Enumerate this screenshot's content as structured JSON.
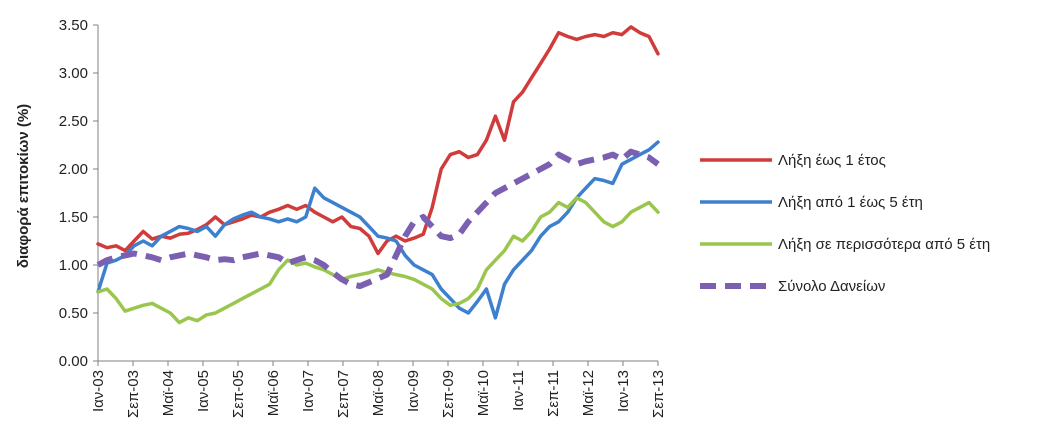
{
  "chart_data": {
    "type": "line",
    "title": "",
    "xlabel": "",
    "ylabel": "διαφορά επιτοκίων (%)",
    "ylim": [
      0,
      3.5
    ],
    "yticks": [
      "0.00",
      "0.50",
      "1.00",
      "1.50",
      "2.00",
      "2.50",
      "3.00",
      "3.50"
    ],
    "x_ticks": [
      "Ιαν-03",
      "Σεπ-03",
      "Μαϊ-04",
      "Ιαν-05",
      "Σεπ-05",
      "Μαϊ-06",
      "Ιαν-07",
      "Σεπ-07",
      "Μαϊ-08",
      "Ιαν-09",
      "Σεπ-09",
      "Μαϊ-10",
      "Ιαν-11",
      "Σεπ-11",
      "Μαϊ-12",
      "Ιαν-13",
      "Σεπ-13"
    ],
    "grid": false,
    "legend_position": "right",
    "series": [
      {
        "name": "Λήξη έως 1 έτος",
        "color": "#d03b3b",
        "dashed": false,
        "points": [
          [
            0,
            1.22
          ],
          [
            1,
            1.18
          ],
          [
            2,
            1.2
          ],
          [
            3,
            1.15
          ],
          [
            4,
            1.25
          ],
          [
            5,
            1.35
          ],
          [
            6,
            1.27
          ],
          [
            7,
            1.3
          ],
          [
            8,
            1.28
          ],
          [
            9,
            1.32
          ],
          [
            10,
            1.33
          ],
          [
            11,
            1.37
          ],
          [
            12,
            1.42
          ],
          [
            13,
            1.5
          ],
          [
            14,
            1.42
          ],
          [
            15,
            1.45
          ],
          [
            16,
            1.48
          ],
          [
            17,
            1.52
          ],
          [
            18,
            1.5
          ],
          [
            19,
            1.55
          ],
          [
            20,
            1.58
          ],
          [
            21,
            1.62
          ],
          [
            22,
            1.58
          ],
          [
            23,
            1.62
          ],
          [
            24,
            1.55
          ],
          [
            25,
            1.5
          ],
          [
            26,
            1.45
          ],
          [
            27,
            1.5
          ],
          [
            28,
            1.4
          ],
          [
            29,
            1.38
          ],
          [
            30,
            1.3
          ],
          [
            31,
            1.12
          ],
          [
            32,
            1.25
          ],
          [
            33,
            1.3
          ],
          [
            34,
            1.25
          ],
          [
            35,
            1.28
          ],
          [
            36,
            1.32
          ],
          [
            37,
            1.6
          ],
          [
            38,
            2.0
          ],
          [
            39,
            2.15
          ],
          [
            40,
            2.18
          ],
          [
            41,
            2.12
          ],
          [
            42,
            2.15
          ],
          [
            43,
            2.3
          ],
          [
            44,
            2.55
          ],
          [
            45,
            2.3
          ],
          [
            46,
            2.7
          ],
          [
            47,
            2.8
          ],
          [
            48,
            2.95
          ],
          [
            49,
            3.1
          ],
          [
            50,
            3.25
          ],
          [
            51,
            3.42
          ],
          [
            52,
            3.38
          ],
          [
            53,
            3.35
          ],
          [
            54,
            3.38
          ],
          [
            55,
            3.4
          ],
          [
            56,
            3.38
          ],
          [
            57,
            3.42
          ],
          [
            58,
            3.4
          ],
          [
            59,
            3.48
          ],
          [
            60,
            3.42
          ],
          [
            61,
            3.38
          ],
          [
            62,
            3.2
          ]
        ]
      },
      {
        "name": "Λήξη από 1 έως 5 έτη",
        "color": "#3d80cf",
        "dashed": false,
        "points": [
          [
            0,
            0.72
          ],
          [
            1,
            1.02
          ],
          [
            2,
            1.05
          ],
          [
            3,
            1.1
          ],
          [
            4,
            1.2
          ],
          [
            5,
            1.25
          ],
          [
            6,
            1.2
          ],
          [
            7,
            1.3
          ],
          [
            8,
            1.35
          ],
          [
            9,
            1.4
          ],
          [
            10,
            1.38
          ],
          [
            11,
            1.35
          ],
          [
            12,
            1.4
          ],
          [
            13,
            1.3
          ],
          [
            14,
            1.42
          ],
          [
            15,
            1.48
          ],
          [
            16,
            1.52
          ],
          [
            17,
            1.55
          ],
          [
            18,
            1.5
          ],
          [
            19,
            1.48
          ],
          [
            20,
            1.45
          ],
          [
            21,
            1.48
          ],
          [
            22,
            1.45
          ],
          [
            23,
            1.5
          ],
          [
            24,
            1.8
          ],
          [
            25,
            1.7
          ],
          [
            26,
            1.65
          ],
          [
            27,
            1.6
          ],
          [
            28,
            1.55
          ],
          [
            29,
            1.5
          ],
          [
            30,
            1.4
          ],
          [
            31,
            1.3
          ],
          [
            32,
            1.28
          ],
          [
            33,
            1.25
          ],
          [
            34,
            1.1
          ],
          [
            35,
            1.0
          ],
          [
            36,
            0.95
          ],
          [
            37,
            0.9
          ],
          [
            38,
            0.75
          ],
          [
            39,
            0.65
          ],
          [
            40,
            0.55
          ],
          [
            41,
            0.5
          ],
          [
            42,
            0.62
          ],
          [
            43,
            0.75
          ],
          [
            44,
            0.45
          ],
          [
            45,
            0.8
          ],
          [
            46,
            0.95
          ],
          [
            47,
            1.05
          ],
          [
            48,
            1.15
          ],
          [
            49,
            1.3
          ],
          [
            50,
            1.4
          ],
          [
            51,
            1.45
          ],
          [
            52,
            1.55
          ],
          [
            53,
            1.7
          ],
          [
            54,
            1.8
          ],
          [
            55,
            1.9
          ],
          [
            56,
            1.88
          ],
          [
            57,
            1.85
          ],
          [
            58,
            2.05
          ],
          [
            59,
            2.1
          ],
          [
            60,
            2.15
          ],
          [
            61,
            2.2
          ],
          [
            62,
            2.28
          ]
        ]
      },
      {
        "name": "Λήξη σε περισσότερα από 5 έτη",
        "color": "#9ac64e",
        "dashed": false,
        "points": [
          [
            0,
            0.72
          ],
          [
            1,
            0.75
          ],
          [
            2,
            0.65
          ],
          [
            3,
            0.52
          ],
          [
            4,
            0.55
          ],
          [
            5,
            0.58
          ],
          [
            6,
            0.6
          ],
          [
            7,
            0.55
          ],
          [
            8,
            0.5
          ],
          [
            9,
            0.4
          ],
          [
            10,
            0.45
          ],
          [
            11,
            0.42
          ],
          [
            12,
            0.48
          ],
          [
            13,
            0.5
          ],
          [
            14,
            0.55
          ],
          [
            15,
            0.6
          ],
          [
            16,
            0.65
          ],
          [
            17,
            0.7
          ],
          [
            18,
            0.75
          ],
          [
            19,
            0.8
          ],
          [
            20,
            0.95
          ],
          [
            21,
            1.05
          ],
          [
            22,
            1.0
          ],
          [
            23,
            1.02
          ],
          [
            24,
            0.98
          ],
          [
            25,
            0.95
          ],
          [
            26,
            0.9
          ],
          [
            27,
            0.85
          ],
          [
            28,
            0.88
          ],
          [
            29,
            0.9
          ],
          [
            30,
            0.92
          ],
          [
            31,
            0.95
          ],
          [
            32,
            0.92
          ],
          [
            33,
            0.9
          ],
          [
            34,
            0.88
          ],
          [
            35,
            0.85
          ],
          [
            36,
            0.8
          ],
          [
            37,
            0.75
          ],
          [
            38,
            0.65
          ],
          [
            39,
            0.58
          ],
          [
            40,
            0.6
          ],
          [
            41,
            0.65
          ],
          [
            42,
            0.75
          ],
          [
            43,
            0.95
          ],
          [
            44,
            1.05
          ],
          [
            45,
            1.15
          ],
          [
            46,
            1.3
          ],
          [
            47,
            1.25
          ],
          [
            48,
            1.35
          ],
          [
            49,
            1.5
          ],
          [
            50,
            1.55
          ],
          [
            51,
            1.65
          ],
          [
            52,
            1.6
          ],
          [
            53,
            1.7
          ],
          [
            54,
            1.65
          ],
          [
            55,
            1.55
          ],
          [
            56,
            1.45
          ],
          [
            57,
            1.4
          ],
          [
            58,
            1.45
          ],
          [
            59,
            1.55
          ],
          [
            60,
            1.6
          ],
          [
            61,
            1.65
          ],
          [
            62,
            1.55
          ]
        ]
      },
      {
        "name": "Σύνολο Δανείων",
        "color": "#7b5fb0",
        "dashed": true,
        "points": [
          [
            0,
            1.0
          ],
          [
            1,
            1.05
          ],
          [
            2,
            1.08
          ],
          [
            3,
            1.1
          ],
          [
            4,
            1.12
          ],
          [
            5,
            1.1
          ],
          [
            6,
            1.08
          ],
          [
            7,
            1.05
          ],
          [
            8,
            1.08
          ],
          [
            9,
            1.1
          ],
          [
            10,
            1.12
          ],
          [
            11,
            1.1
          ],
          [
            12,
            1.08
          ],
          [
            13,
            1.05
          ],
          [
            14,
            1.06
          ],
          [
            15,
            1.05
          ],
          [
            16,
            1.08
          ],
          [
            17,
            1.1
          ],
          [
            18,
            1.12
          ],
          [
            19,
            1.1
          ],
          [
            20,
            1.08
          ],
          [
            21,
            1.02
          ],
          [
            22,
            1.05
          ],
          [
            23,
            1.08
          ],
          [
            24,
            1.05
          ],
          [
            25,
            1.0
          ],
          [
            26,
            0.92
          ],
          [
            27,
            0.85
          ],
          [
            28,
            0.8
          ],
          [
            29,
            0.78
          ],
          [
            30,
            0.82
          ],
          [
            31,
            0.86
          ],
          [
            32,
            0.9
          ],
          [
            33,
            1.1
          ],
          [
            34,
            1.3
          ],
          [
            35,
            1.45
          ],
          [
            36,
            1.5
          ],
          [
            37,
            1.4
          ],
          [
            38,
            1.3
          ],
          [
            39,
            1.28
          ],
          [
            40,
            1.32
          ],
          [
            41,
            1.45
          ],
          [
            42,
            1.55
          ],
          [
            43,
            1.65
          ],
          [
            44,
            1.75
          ],
          [
            45,
            1.8
          ],
          [
            46,
            1.85
          ],
          [
            47,
            1.9
          ],
          [
            48,
            1.95
          ],
          [
            49,
            2.0
          ],
          [
            50,
            2.05
          ],
          [
            51,
            2.15
          ],
          [
            52,
            2.1
          ],
          [
            53,
            2.05
          ],
          [
            54,
            2.08
          ],
          [
            55,
            2.1
          ],
          [
            56,
            2.12
          ],
          [
            57,
            2.15
          ],
          [
            58,
            2.1
          ],
          [
            59,
            2.18
          ],
          [
            60,
            2.15
          ],
          [
            61,
            2.12
          ],
          [
            62,
            2.05
          ]
        ]
      }
    ]
  }
}
